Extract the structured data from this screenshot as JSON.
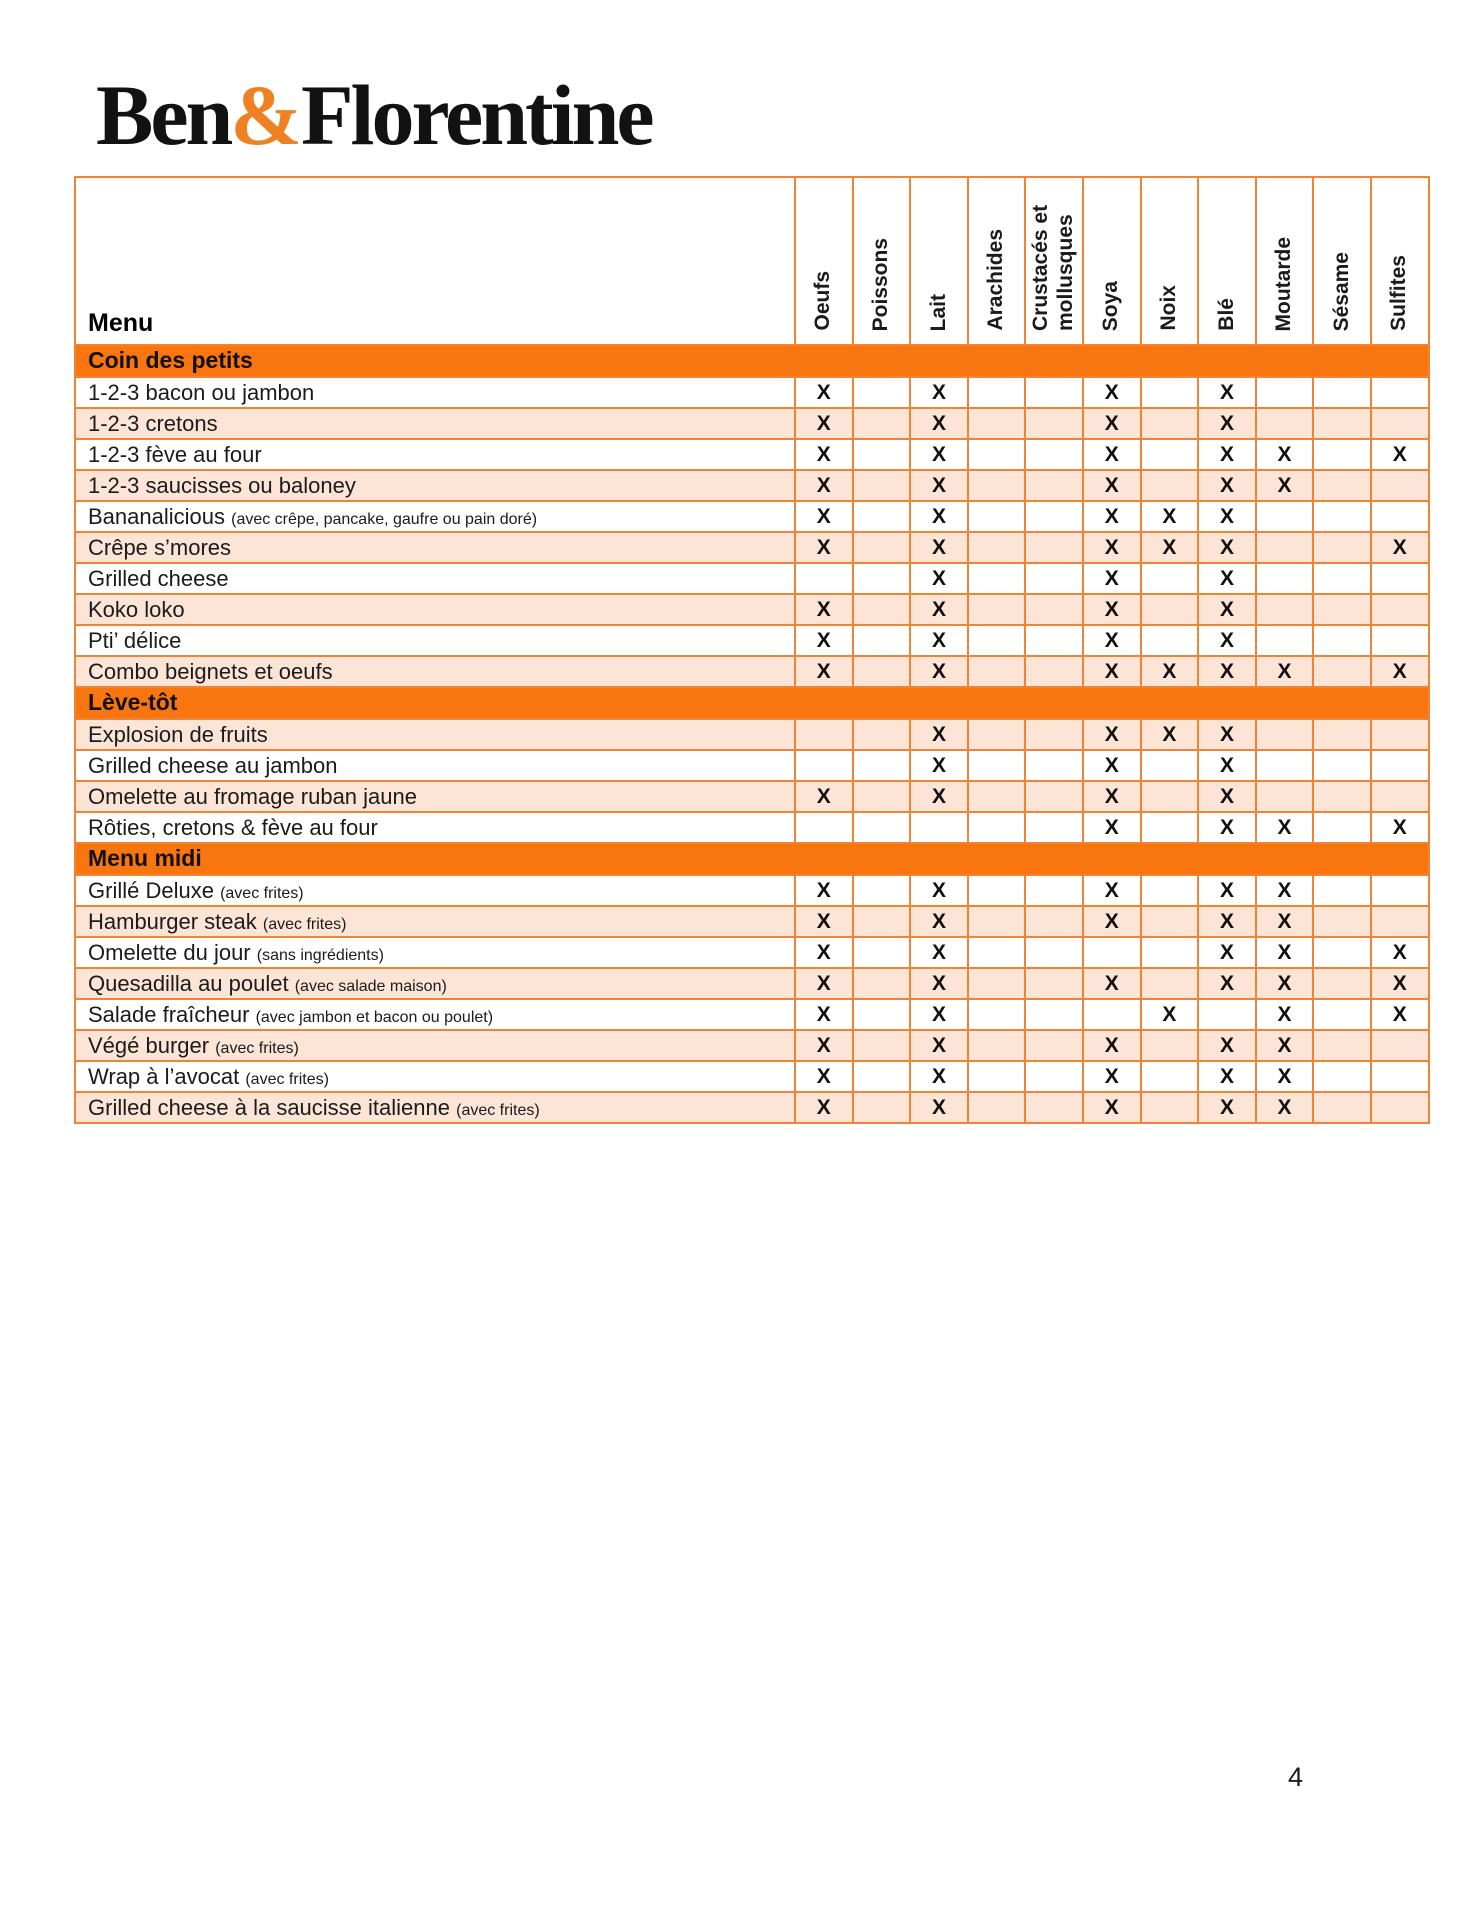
{
  "logo": {
    "part1": "Ben",
    "amp": "&",
    "part2": "Florentine"
  },
  "page_number": "4",
  "colors": {
    "section_bar_orange": "#F8750F",
    "row_tint": "#FCE4D6",
    "grid_border": "#EE8434",
    "logo_ampersand": "#F08122",
    "mark_color": "#111111"
  },
  "table": {
    "menu_header": "Menu",
    "mark": "X",
    "columns": [
      {
        "id": "oeufs",
        "label": "Oeufs"
      },
      {
        "id": "poissons",
        "label": "Poissons"
      },
      {
        "id": "lait",
        "label": "Lait"
      },
      {
        "id": "arachides",
        "label": "Arachides"
      },
      {
        "id": "crustaces",
        "label": "Crustacés et mollusques"
      },
      {
        "id": "soya",
        "label": "Soya"
      },
      {
        "id": "noix",
        "label": "Noix"
      },
      {
        "id": "ble",
        "label": "Blé"
      },
      {
        "id": "moutarde",
        "label": "Moutarde"
      },
      {
        "id": "sesame",
        "label": "Sésame"
      },
      {
        "id": "sulfites",
        "label": "Sulfites"
      }
    ],
    "sections": [
      {
        "title": "Coin des petits",
        "first_row_shaded": false,
        "rows": [
          {
            "name": "1-2-3 bacon ou jambon",
            "note": "",
            "allergens": [
              "oeufs",
              "lait",
              "soya",
              "ble"
            ]
          },
          {
            "name": "1-2-3 cretons",
            "note": "",
            "allergens": [
              "oeufs",
              "lait",
              "soya",
              "ble"
            ]
          },
          {
            "name": "1-2-3 fève au four",
            "note": "",
            "allergens": [
              "oeufs",
              "lait",
              "soya",
              "ble",
              "moutarde",
              "sulfites"
            ]
          },
          {
            "name": "1-2-3 saucisses ou baloney",
            "note": "",
            "allergens": [
              "oeufs",
              "lait",
              "soya",
              "ble",
              "moutarde"
            ]
          },
          {
            "name": "Bananalicious",
            "note": "(avec crêpe, pancake, gaufre ou pain doré)",
            "allergens": [
              "oeufs",
              "lait",
              "soya",
              "noix",
              "ble"
            ]
          },
          {
            "name": "Crêpe s’mores",
            "note": "",
            "allergens": [
              "oeufs",
              "lait",
              "soya",
              "noix",
              "ble",
              "sulfites"
            ]
          },
          {
            "name": "Grilled cheese",
            "note": "",
            "allergens": [
              "lait",
              "soya",
              "ble"
            ]
          },
          {
            "name": "Koko loko",
            "note": "",
            "allergens": [
              "oeufs",
              "lait",
              "soya",
              "ble"
            ]
          },
          {
            "name": "Pti’ délice",
            "note": "",
            "allergens": [
              "oeufs",
              "lait",
              "soya",
              "ble"
            ]
          },
          {
            "name": "Combo beignets et oeufs",
            "note": "",
            "allergens": [
              "oeufs",
              "lait",
              "soya",
              "noix",
              "ble",
              "moutarde",
              "sulfites"
            ]
          }
        ]
      },
      {
        "title": "Lève-tôt",
        "first_row_shaded": true,
        "rows": [
          {
            "name": "Explosion de fruits",
            "note": "",
            "allergens": [
              "lait",
              "soya",
              "noix",
              "ble"
            ]
          },
          {
            "name": "Grilled cheese au jambon",
            "note": "",
            "allergens": [
              "lait",
              "soya",
              "ble"
            ]
          },
          {
            "name": "Omelette au fromage ruban jaune",
            "note": "",
            "allergens": [
              "oeufs",
              "lait",
              "soya",
              "ble"
            ]
          },
          {
            "name": "Rôties, cretons & fève au four",
            "note": "",
            "allergens": [
              "soya",
              "ble",
              "moutarde",
              "sulfites"
            ]
          }
        ]
      },
      {
        "title": "Menu midi",
        "first_row_shaded": false,
        "rows": [
          {
            "name": "Grillé Deluxe",
            "note": "(avec frites)",
            "allergens": [
              "oeufs",
              "lait",
              "soya",
              "ble",
              "moutarde"
            ]
          },
          {
            "name": "Hamburger steak",
            "note": "(avec frites)",
            "allergens": [
              "oeufs",
              "lait",
              "soya",
              "ble",
              "moutarde"
            ]
          },
          {
            "name": "Omelette du jour",
            "note": "(sans ingrédients)",
            "allergens": [
              "oeufs",
              "lait",
              "ble",
              "moutarde",
              "sulfites"
            ]
          },
          {
            "name": "Quesadilla au poulet",
            "note": "(avec salade maison)",
            "allergens": [
              "oeufs",
              "lait",
              "soya",
              "ble",
              "moutarde",
              "sulfites"
            ]
          },
          {
            "name": "Salade fraîcheur",
            "note": "(avec jambon et bacon ou poulet)",
            "allergens": [
              "oeufs",
              "lait",
              "noix",
              "moutarde",
              "sulfites"
            ]
          },
          {
            "name": "Végé burger",
            "note": "(avec frites)",
            "allergens": [
              "oeufs",
              "lait",
              "soya",
              "ble",
              "moutarde"
            ]
          },
          {
            "name": "Wrap à l’avocat",
            "note": "(avec frites)",
            "allergens": [
              "oeufs",
              "lait",
              "soya",
              "ble",
              "moutarde"
            ]
          },
          {
            "name": "Grilled cheese à la saucisse italienne",
            "note": "(avec frites)",
            "allergens": [
              "oeufs",
              "lait",
              "soya",
              "ble",
              "moutarde"
            ]
          }
        ]
      }
    ]
  }
}
